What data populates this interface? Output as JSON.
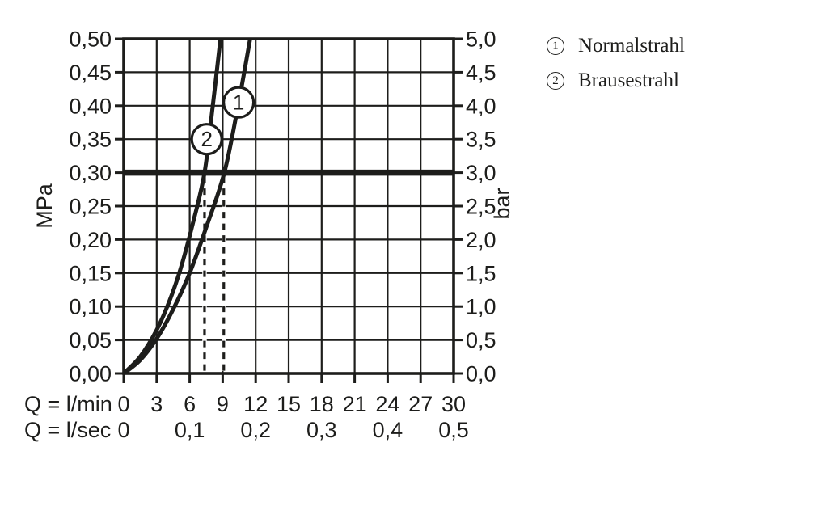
{
  "colors": {
    "ink": "#1d1d1b",
    "background": "#ffffff"
  },
  "legend": {
    "items": [
      {
        "symbol": "1",
        "label": "Normalstrahl"
      },
      {
        "symbol": "2",
        "label": "Brausestrahl"
      }
    ]
  },
  "chart_data": {
    "type": "line",
    "x_axis": {
      "primary_label": "Q = l/min",
      "primary_ticks": [
        "0",
        "3",
        "6",
        "9",
        "12",
        "15",
        "18",
        "21",
        "24",
        "27",
        "30"
      ],
      "primary_tick_values_lmin": [
        0,
        3,
        6,
        9,
        12,
        15,
        18,
        21,
        24,
        27,
        30
      ],
      "secondary_label": "Q = l/sec",
      "secondary_ticks": [
        {
          "q_lmin": 0,
          "text": "0"
        },
        {
          "q_lmin": 6,
          "text": "0,1"
        },
        {
          "q_lmin": 12,
          "text": "0,2"
        },
        {
          "q_lmin": 18,
          "text": "0,3"
        },
        {
          "q_lmin": 24,
          "text": "0,4"
        },
        {
          "q_lmin": 30,
          "text": "0,5"
        }
      ],
      "range_lmin": [
        0,
        30
      ]
    },
    "y_axis_left": {
      "label": "MPa",
      "ticks": [
        "0,00",
        "0,05",
        "0,10",
        "0,15",
        "0,20",
        "0,25",
        "0,30",
        "0,35",
        "0,40",
        "0,45",
        "0,50"
      ],
      "tick_values_mpa": [
        0,
        0.05,
        0.1,
        0.15,
        0.2,
        0.25,
        0.3,
        0.35,
        0.4,
        0.45,
        0.5
      ],
      "range_mpa": [
        0,
        0.5
      ]
    },
    "y_axis_right": {
      "label": "bar",
      "ticks": [
        "0,0",
        "0,5",
        "1,0",
        "1,5",
        "2,0",
        "2,5",
        "3,0",
        "3,5",
        "4,0",
        "4,5",
        "5,0"
      ],
      "tick_values_bar": [
        0,
        0.5,
        1.0,
        1.5,
        2.0,
        2.5,
        3.0,
        3.5,
        4.0,
        4.5,
        5.0
      ],
      "range_bar": [
        0,
        5
      ]
    },
    "grid": {
      "x_step_lmin": 3,
      "y_step_mpa": 0.05,
      "on": true
    },
    "reference_line_mpa": 0.3,
    "guide_lines_lmin": [
      7.35,
      9.1
    ],
    "series": [
      {
        "id": "1",
        "name": "Normalstrahl",
        "points_lmin_mpa": [
          [
            0,
            0
          ],
          [
            1.5,
            0.02
          ],
          [
            3,
            0.052
          ],
          [
            4.5,
            0.096
          ],
          [
            6,
            0.15
          ],
          [
            7.5,
            0.218
          ],
          [
            9.15,
            0.3
          ],
          [
            10.4,
            0.4
          ],
          [
            11.5,
            0.5
          ]
        ],
        "marker_lmin_mpa": [
          10.45,
          0.405
        ],
        "flow_at_3bar_lmin": 9.1
      },
      {
        "id": "2",
        "name": "Brausestrahl",
        "points_lmin_mpa": [
          [
            0,
            0
          ],
          [
            1.5,
            0.025
          ],
          [
            3,
            0.065
          ],
          [
            4.2,
            0.11
          ],
          [
            5.2,
            0.158
          ],
          [
            6.3,
            0.225
          ],
          [
            7.35,
            0.3
          ],
          [
            8.1,
            0.4
          ],
          [
            8.8,
            0.5
          ]
        ],
        "marker_lmin_mpa": [
          7.55,
          0.35
        ],
        "flow_at_3bar_lmin": 7.35
      }
    ]
  }
}
